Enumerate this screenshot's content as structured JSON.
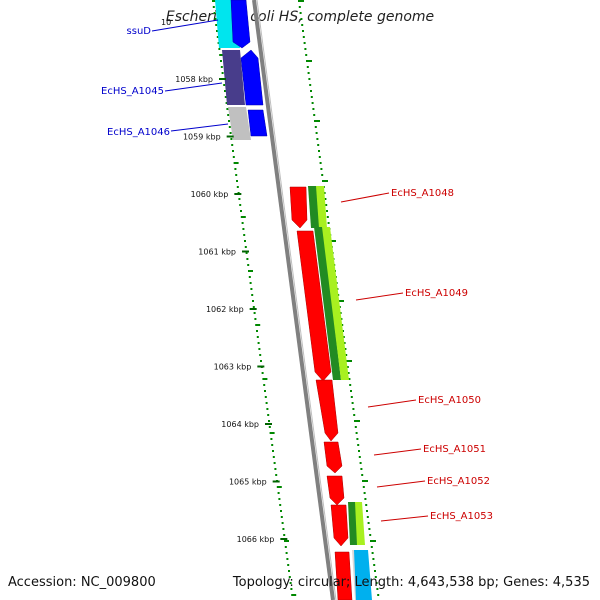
{
  "header": {
    "title": "Escherichia coli HS, complete genome"
  },
  "footer": {
    "accession": "Accession: NC_009800",
    "summary": "Topology: circular; Length: 4,643,538 bp; Genes: 4,535"
  },
  "chart_data": {
    "type": "genome_map",
    "ticks": [
      {
        "label": "1058 kbp",
        "kbp": 1058
      },
      {
        "label": "1059 kbp",
        "kbp": 1059
      },
      {
        "label": "1060 kbp",
        "kbp": 1060
      },
      {
        "label": "1061 kbp",
        "kbp": 1061
      },
      {
        "label": "1062 kbp",
        "kbp": 1062
      },
      {
        "label": "1063 kbp",
        "kbp": 1063
      },
      {
        "label": "1064 kbp",
        "kbp": 1064
      },
      {
        "label": "1065 kbp",
        "kbp": 1065
      },
      {
        "label": "1066 kbp",
        "kbp": 1066
      }
    ],
    "partial_tick_label": "10",
    "genes": [
      {
        "name": "ssuD",
        "strand": "reverse",
        "color": "#0000cc"
      },
      {
        "name": "EcHS_A1045",
        "strand": "reverse",
        "color": "#0000cc"
      },
      {
        "name": "EcHS_A1046",
        "strand": "reverse",
        "color": "#0000cc"
      },
      {
        "name": "EcHS_A1048",
        "strand": "forward",
        "color": "#cc0000"
      },
      {
        "name": "EcHS_A1049",
        "strand": "forward",
        "color": "#cc0000"
      },
      {
        "name": "EcHS_A1050",
        "strand": "forward",
        "color": "#cc0000"
      },
      {
        "name": "EcHS_A1051",
        "strand": "forward",
        "color": "#cc0000"
      },
      {
        "name": "EcHS_A1052",
        "strand": "forward",
        "color": "#cc0000"
      },
      {
        "name": "EcHS_A1053",
        "strand": "forward",
        "color": "#cc0000"
      }
    ],
    "colors": {
      "forward_cds": "#ff0000",
      "reverse_cds": "#0000ff",
      "cog_green_dark": "#228b22",
      "cog_green_light": "#a8f020",
      "cog_cyan": "#00e5ee",
      "cog_slate": "#483d8b",
      "cog_grey": "#c0c0c0",
      "backbone": "#808080",
      "gc_dots": "#008800"
    }
  }
}
